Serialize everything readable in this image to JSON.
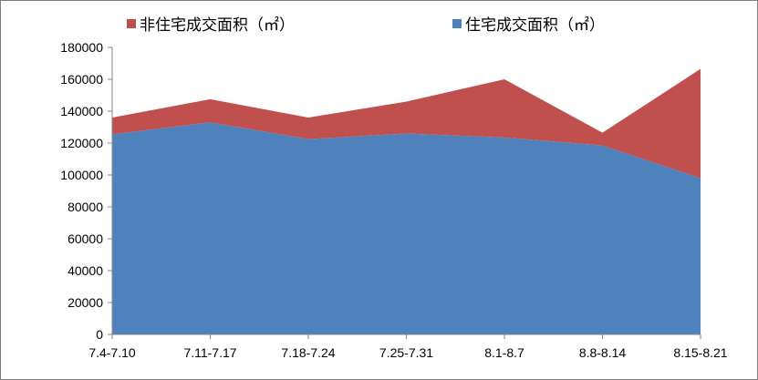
{
  "chart_data": {
    "type": "area",
    "stacked": true,
    "categories": [
      "7.4-7.10",
      "7.11-7.17",
      "7.18-7.24",
      "7.25-7.31",
      "8.1-8.7",
      "8.8-8.14",
      "8.15-8.21"
    ],
    "series": [
      {
        "name": "住宅成交面积（㎡）",
        "color": "#4f81bd",
        "values": [
          125500,
          133000,
          122500,
          126000,
          123500,
          118500,
          98000
        ]
      },
      {
        "name": "非住宅成交面积（㎡）",
        "color": "#c0504d",
        "values": [
          10500,
          14500,
          13500,
          20000,
          36500,
          8000,
          68500
        ]
      }
    ],
    "ylim": [
      0,
      180000
    ],
    "yticks": [
      0,
      20000,
      40000,
      60000,
      80000,
      100000,
      120000,
      140000,
      160000,
      180000
    ],
    "grid": false,
    "legend_position": "top"
  }
}
